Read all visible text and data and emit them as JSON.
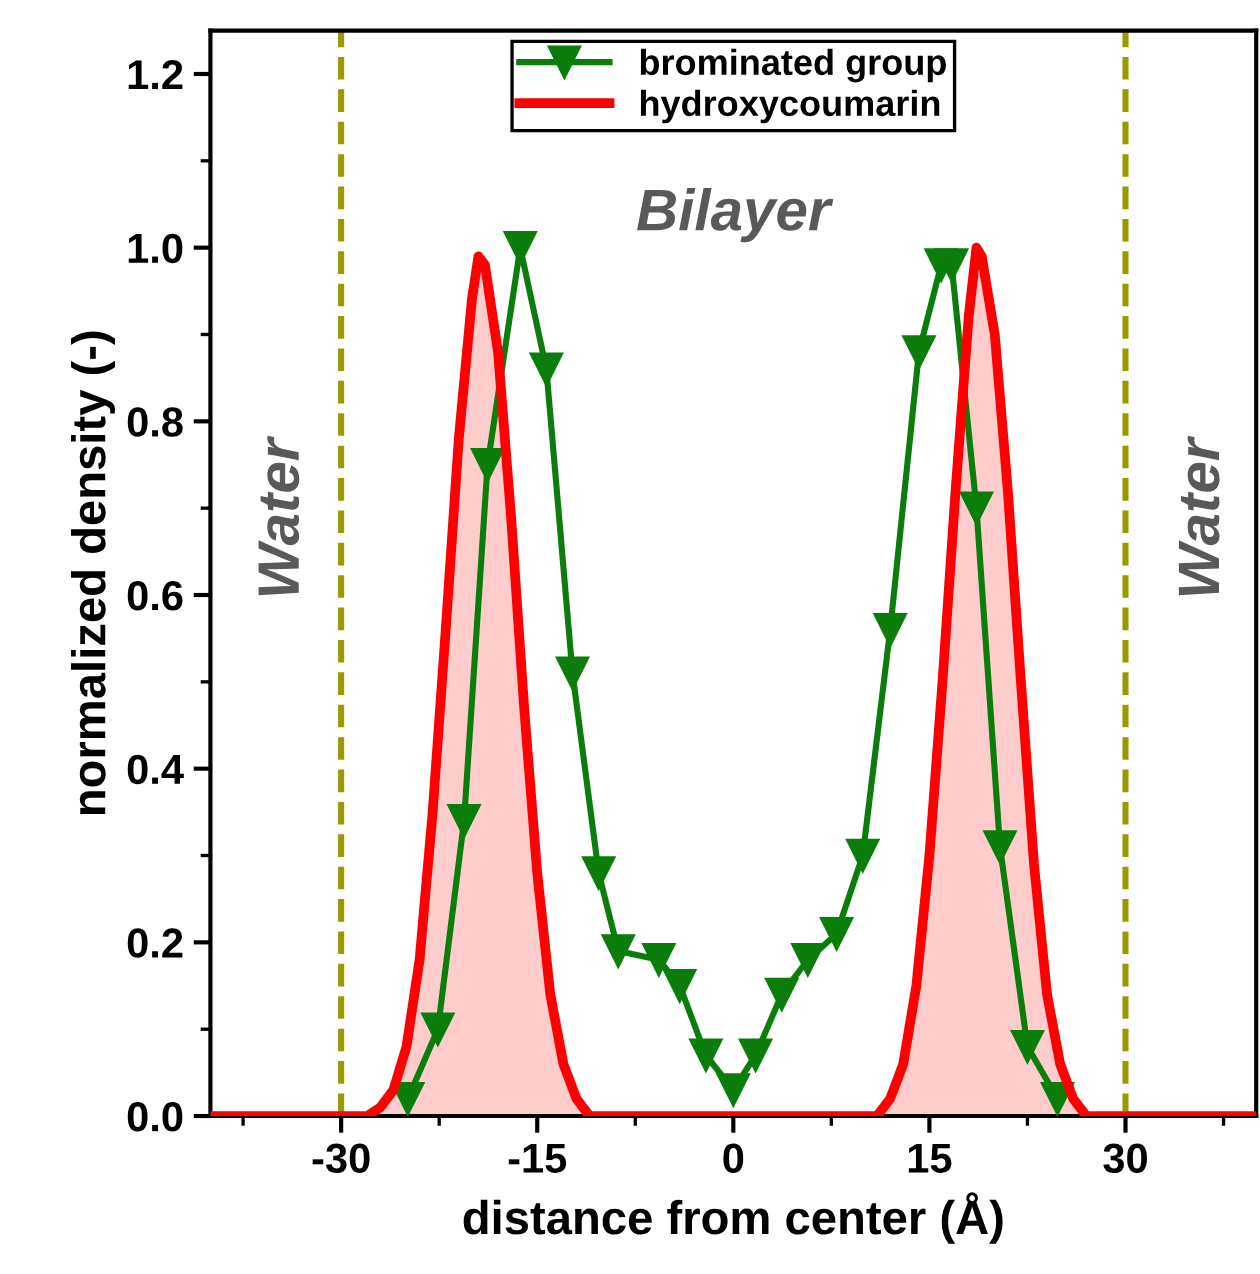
{
  "chart_data": {
    "type": "line",
    "xlabel": "distance from center (Å)",
    "ylabel": "normalized density (-)",
    "xlim": [
      -40,
      40
    ],
    "ylim": [
      0,
      1.25
    ],
    "xticks": [
      -30,
      -15,
      0,
      15,
      30
    ],
    "yticks": [
      {
        "value": 0,
        "label": "0.0"
      },
      0.2,
      0.4,
      0.6,
      0.8,
      {
        "value": 1,
        "label": "1.0"
      },
      1.2
    ],
    "grid": false,
    "legend": "top",
    "series": [
      {
        "name": "brominated group",
        "color": "#0b7d0b",
        "marker": "triangle",
        "line_style": "solid",
        "x": [
          -24.9,
          -22.6,
          -20.6,
          -18.8,
          -16.3,
          -14.3,
          -12.3,
          -10.3,
          -8.8,
          -5.7,
          -4.1,
          -2.1,
          0,
          1.7,
          3.7,
          5.7,
          7.9,
          9.9,
          12.0,
          14.2,
          15.9,
          16.7,
          18.6,
          20.4,
          22.5,
          24.8
        ],
        "values": [
          0.02,
          0.1,
          0.34,
          0.75,
          1.0,
          0.86,
          0.51,
          0.28,
          0.19,
          0.18,
          0.15,
          0.07,
          0.03,
          0.07,
          0.14,
          0.18,
          0.21,
          0.3,
          0.56,
          0.88,
          0.98,
          0.98,
          0.7,
          0.31,
          0.08,
          0.02
        ]
      },
      {
        "name": "hydroxycoumarin",
        "type": "area",
        "color": "#ff0000",
        "marker": "none",
        "line_style": "solid",
        "x": [
          -40,
          -28,
          -27,
          -26,
          -25,
          -24,
          -23,
          -22,
          -21,
          -20,
          -19.5,
          -19,
          -18,
          -17,
          -16,
          -15,
          -14,
          -13,
          -12,
          -11,
          11,
          12,
          13,
          14,
          15,
          16,
          17,
          18,
          18.6,
          19,
          20,
          21,
          22,
          23,
          24,
          25,
          26,
          27,
          40
        ],
        "values": [
          0,
          0,
          0.01,
          0.03,
          0.08,
          0.18,
          0.35,
          0.56,
          0.78,
          0.94,
          0.99,
          0.98,
          0.88,
          0.69,
          0.47,
          0.28,
          0.14,
          0.06,
          0.02,
          0,
          0,
          0.02,
          0.06,
          0.15,
          0.3,
          0.5,
          0.72,
          0.92,
          1.0,
          0.99,
          0.9,
          0.72,
          0.5,
          0.29,
          0.14,
          0.06,
          0.02,
          0,
          0
        ]
      }
    ],
    "ref_lines": [
      {
        "axis": "x",
        "value": -30,
        "color": "#999900",
        "line_style": "dashed"
      },
      {
        "axis": "x",
        "value": 30,
        "color": "#999900",
        "line_style": "dashed"
      }
    ],
    "annotations": [
      "Water",
      "Bilayer",
      "Water"
    ]
  }
}
